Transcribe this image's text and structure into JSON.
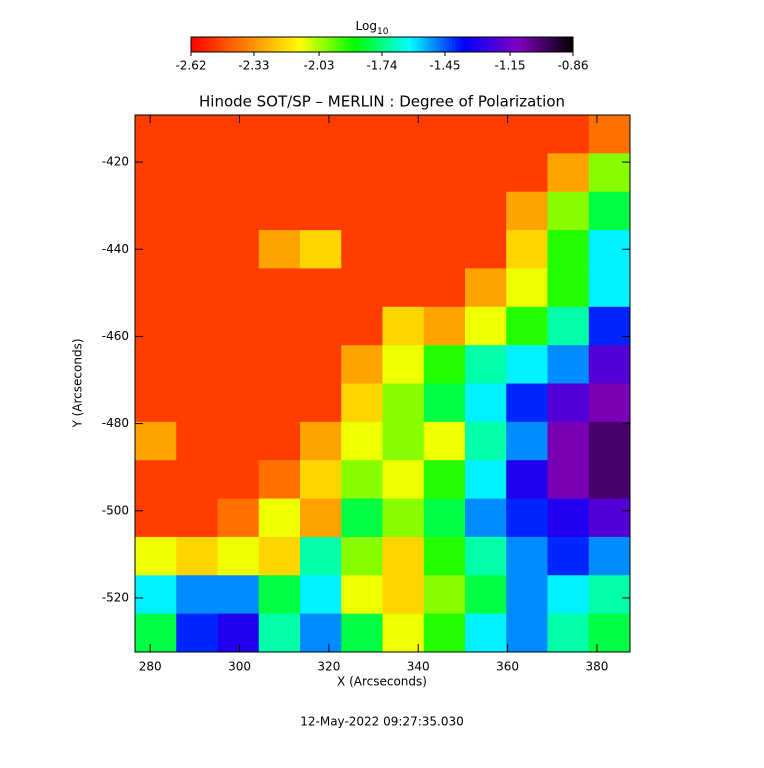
{
  "chart_data": {
    "type": "heatmap",
    "title": "Hinode SOT/SP – MERLIN : Degree of Polarization",
    "x_label": "X (Arcseconds)",
    "y_label": "Y (Arcseconds)",
    "annotation": "12-May-2022 09:27:35.030",
    "colorbar": {
      "label": "Log",
      "label_sub": "10",
      "clim": [
        -2.62,
        -0.86
      ],
      "ticks": [
        -2.62,
        -2.33,
        -2.03,
        -1.74,
        -1.45,
        -1.15,
        -0.86
      ],
      "colors": [
        "#ff0000",
        "#ff8000",
        "#ffff00",
        "#00ff00",
        "#00ffff",
        "#0000ff",
        "#8000c0",
        "#000000"
      ]
    },
    "xlim": [
      276.6,
      387.4
    ],
    "ylim": [
      -532.4,
      -409.2
    ],
    "xticks": [
      280,
      300,
      320,
      340,
      360,
      380
    ],
    "yticks": [
      -420,
      -440,
      -460,
      -480,
      -500,
      -520
    ],
    "z": [
      [
        -2.5,
        -2.5,
        -2.5,
        -2.5,
        -2.5,
        -2.5,
        -2.5,
        -2.5,
        -2.5,
        -2.5,
        -2.5,
        -2.4
      ],
      [
        -2.5,
        -2.5,
        -2.5,
        -2.5,
        -2.5,
        -2.5,
        -2.5,
        -2.5,
        -2.5,
        -2.5,
        -2.3,
        -2.0
      ],
      [
        -2.5,
        -2.5,
        -2.5,
        -2.5,
        -2.5,
        -2.5,
        -2.5,
        -2.5,
        -2.5,
        -2.3,
        -2.0,
        -1.8
      ],
      [
        -2.5,
        -2.5,
        -2.5,
        -2.3,
        -2.2,
        -2.5,
        -2.5,
        -2.5,
        -2.5,
        -2.2,
        -1.9,
        -1.6
      ],
      [
        -2.5,
        -2.5,
        -2.5,
        -2.5,
        -2.5,
        -2.5,
        -2.5,
        -2.5,
        -2.3,
        -2.1,
        -1.9,
        -1.6
      ],
      [
        -2.5,
        -2.5,
        -2.5,
        -2.5,
        -2.5,
        -2.5,
        -2.2,
        -2.3,
        -2.1,
        -1.9,
        -1.7,
        -1.4
      ],
      [
        -2.5,
        -2.5,
        -2.5,
        -2.5,
        -2.5,
        -2.3,
        -2.1,
        -1.9,
        -1.7,
        -1.6,
        -1.5,
        -1.2
      ],
      [
        -2.5,
        -2.5,
        -2.5,
        -2.5,
        -2.5,
        -2.2,
        -2.0,
        -1.8,
        -1.6,
        -1.4,
        -1.2,
        -1.1
      ],
      [
        -2.3,
        -2.5,
        -2.5,
        -2.5,
        -2.3,
        -2.1,
        -2.0,
        -2.1,
        -1.7,
        -1.5,
        -1.1,
        -1.0
      ],
      [
        -2.5,
        -2.5,
        -2.5,
        -2.4,
        -2.2,
        -2.0,
        -2.1,
        -1.9,
        -1.6,
        -1.3,
        -1.1,
        -1.0
      ],
      [
        -2.5,
        -2.5,
        -2.4,
        -2.1,
        -2.3,
        -1.8,
        -2.0,
        -1.8,
        -1.5,
        -1.4,
        -1.3,
        -1.2
      ],
      [
        -2.1,
        -2.2,
        -2.1,
        -2.2,
        -1.7,
        -2.0,
        -2.2,
        -1.9,
        -1.7,
        -1.5,
        -1.4,
        -1.5
      ],
      [
        -1.6,
        -1.5,
        -1.5,
        -1.8,
        -1.6,
        -2.1,
        -2.2,
        -2.0,
        -1.8,
        -1.5,
        -1.6,
        -1.7
      ],
      [
        -1.8,
        -1.4,
        -1.3,
        -1.7,
        -1.5,
        -1.8,
        -2.1,
        -1.9,
        -1.6,
        -1.5,
        -1.7,
        -1.8
      ]
    ]
  }
}
